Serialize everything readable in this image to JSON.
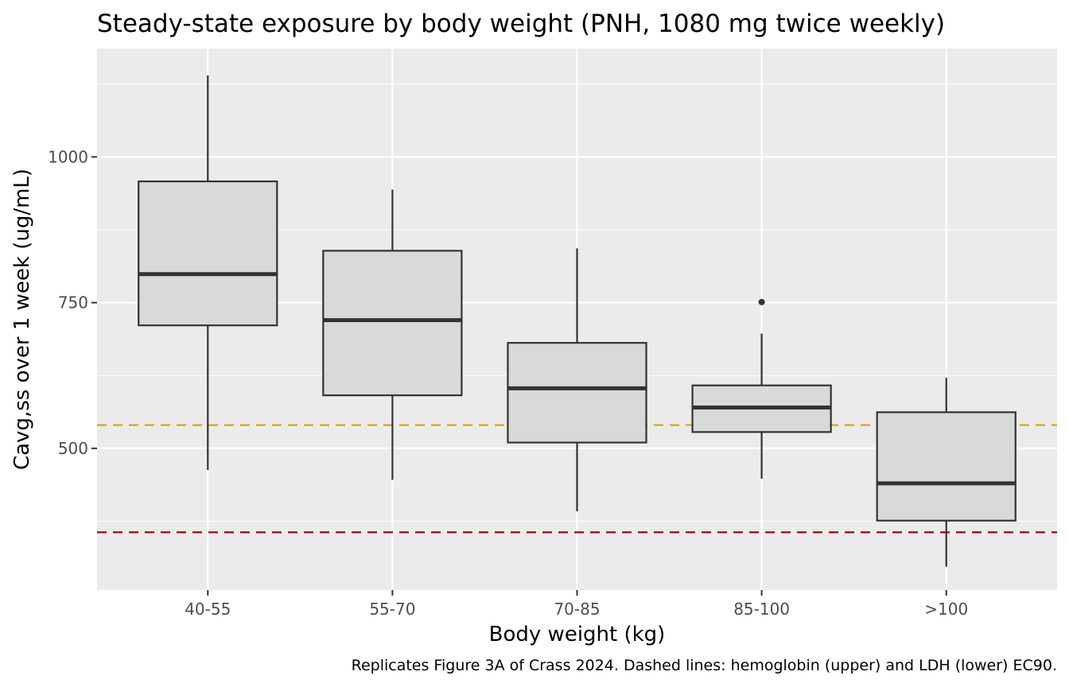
{
  "chart_data": {
    "type": "box",
    "title": "Steady-state exposure by body weight (PNH, 1080 mg twice weekly)",
    "xlabel": "Body weight (kg)",
    "ylabel": "Cavg,ss over 1 week (ug/mL)",
    "caption": "Replicates Figure 3A of Crass 2024. Dashed lines: hemoglobin (upper) and LDH (lower) EC90.",
    "categories": [
      "40-55",
      "55-70",
      "70-85",
      "85-100",
      ">100"
    ],
    "ylim": [
      257,
      1186
    ],
    "yticks": [
      500,
      750,
      1000
    ],
    "ytick_labels": [
      "500",
      "750",
      "1000"
    ],
    "y_minor_gridlines": [
      375,
      625,
      875,
      1125
    ],
    "grid": true,
    "legend": "none",
    "boxes": [
      {
        "category": "40-55",
        "whisker_low": 463,
        "q1": 711,
        "median": 799,
        "q3": 958,
        "whisker_high": 1140,
        "outliers": []
      },
      {
        "category": "55-70",
        "whisker_low": 446,
        "q1": 591,
        "median": 720,
        "q3": 839,
        "whisker_high": 944,
        "outliers": []
      },
      {
        "category": "70-85",
        "whisker_low": 392,
        "q1": 510,
        "median": 603,
        "q3": 681,
        "whisker_high": 843,
        "outliers": []
      },
      {
        "category": "85-100",
        "whisker_low": 448,
        "q1": 528,
        "median": 570,
        "q3": 608,
        "whisker_high": 697,
        "outliers": [
          751
        ]
      },
      {
        "category": ">100",
        "whisker_low": 297,
        "q1": 376,
        "median": 440,
        "q3": 562,
        "whisker_high": 621,
        "outliers": []
      }
    ],
    "reference_lines": [
      {
        "label": "hemoglobin EC90",
        "y": 540,
        "color": "#d4a017",
        "style": "dashed"
      },
      {
        "label": "LDH EC90",
        "y": 356,
        "color": "#8b0000",
        "style": "dashed"
      }
    ],
    "colors": {
      "panel_background": "#ebebeb",
      "grid_major": "#ffffff",
      "box_fill": "#d9d9d9",
      "box_stroke": "#333333"
    }
  }
}
